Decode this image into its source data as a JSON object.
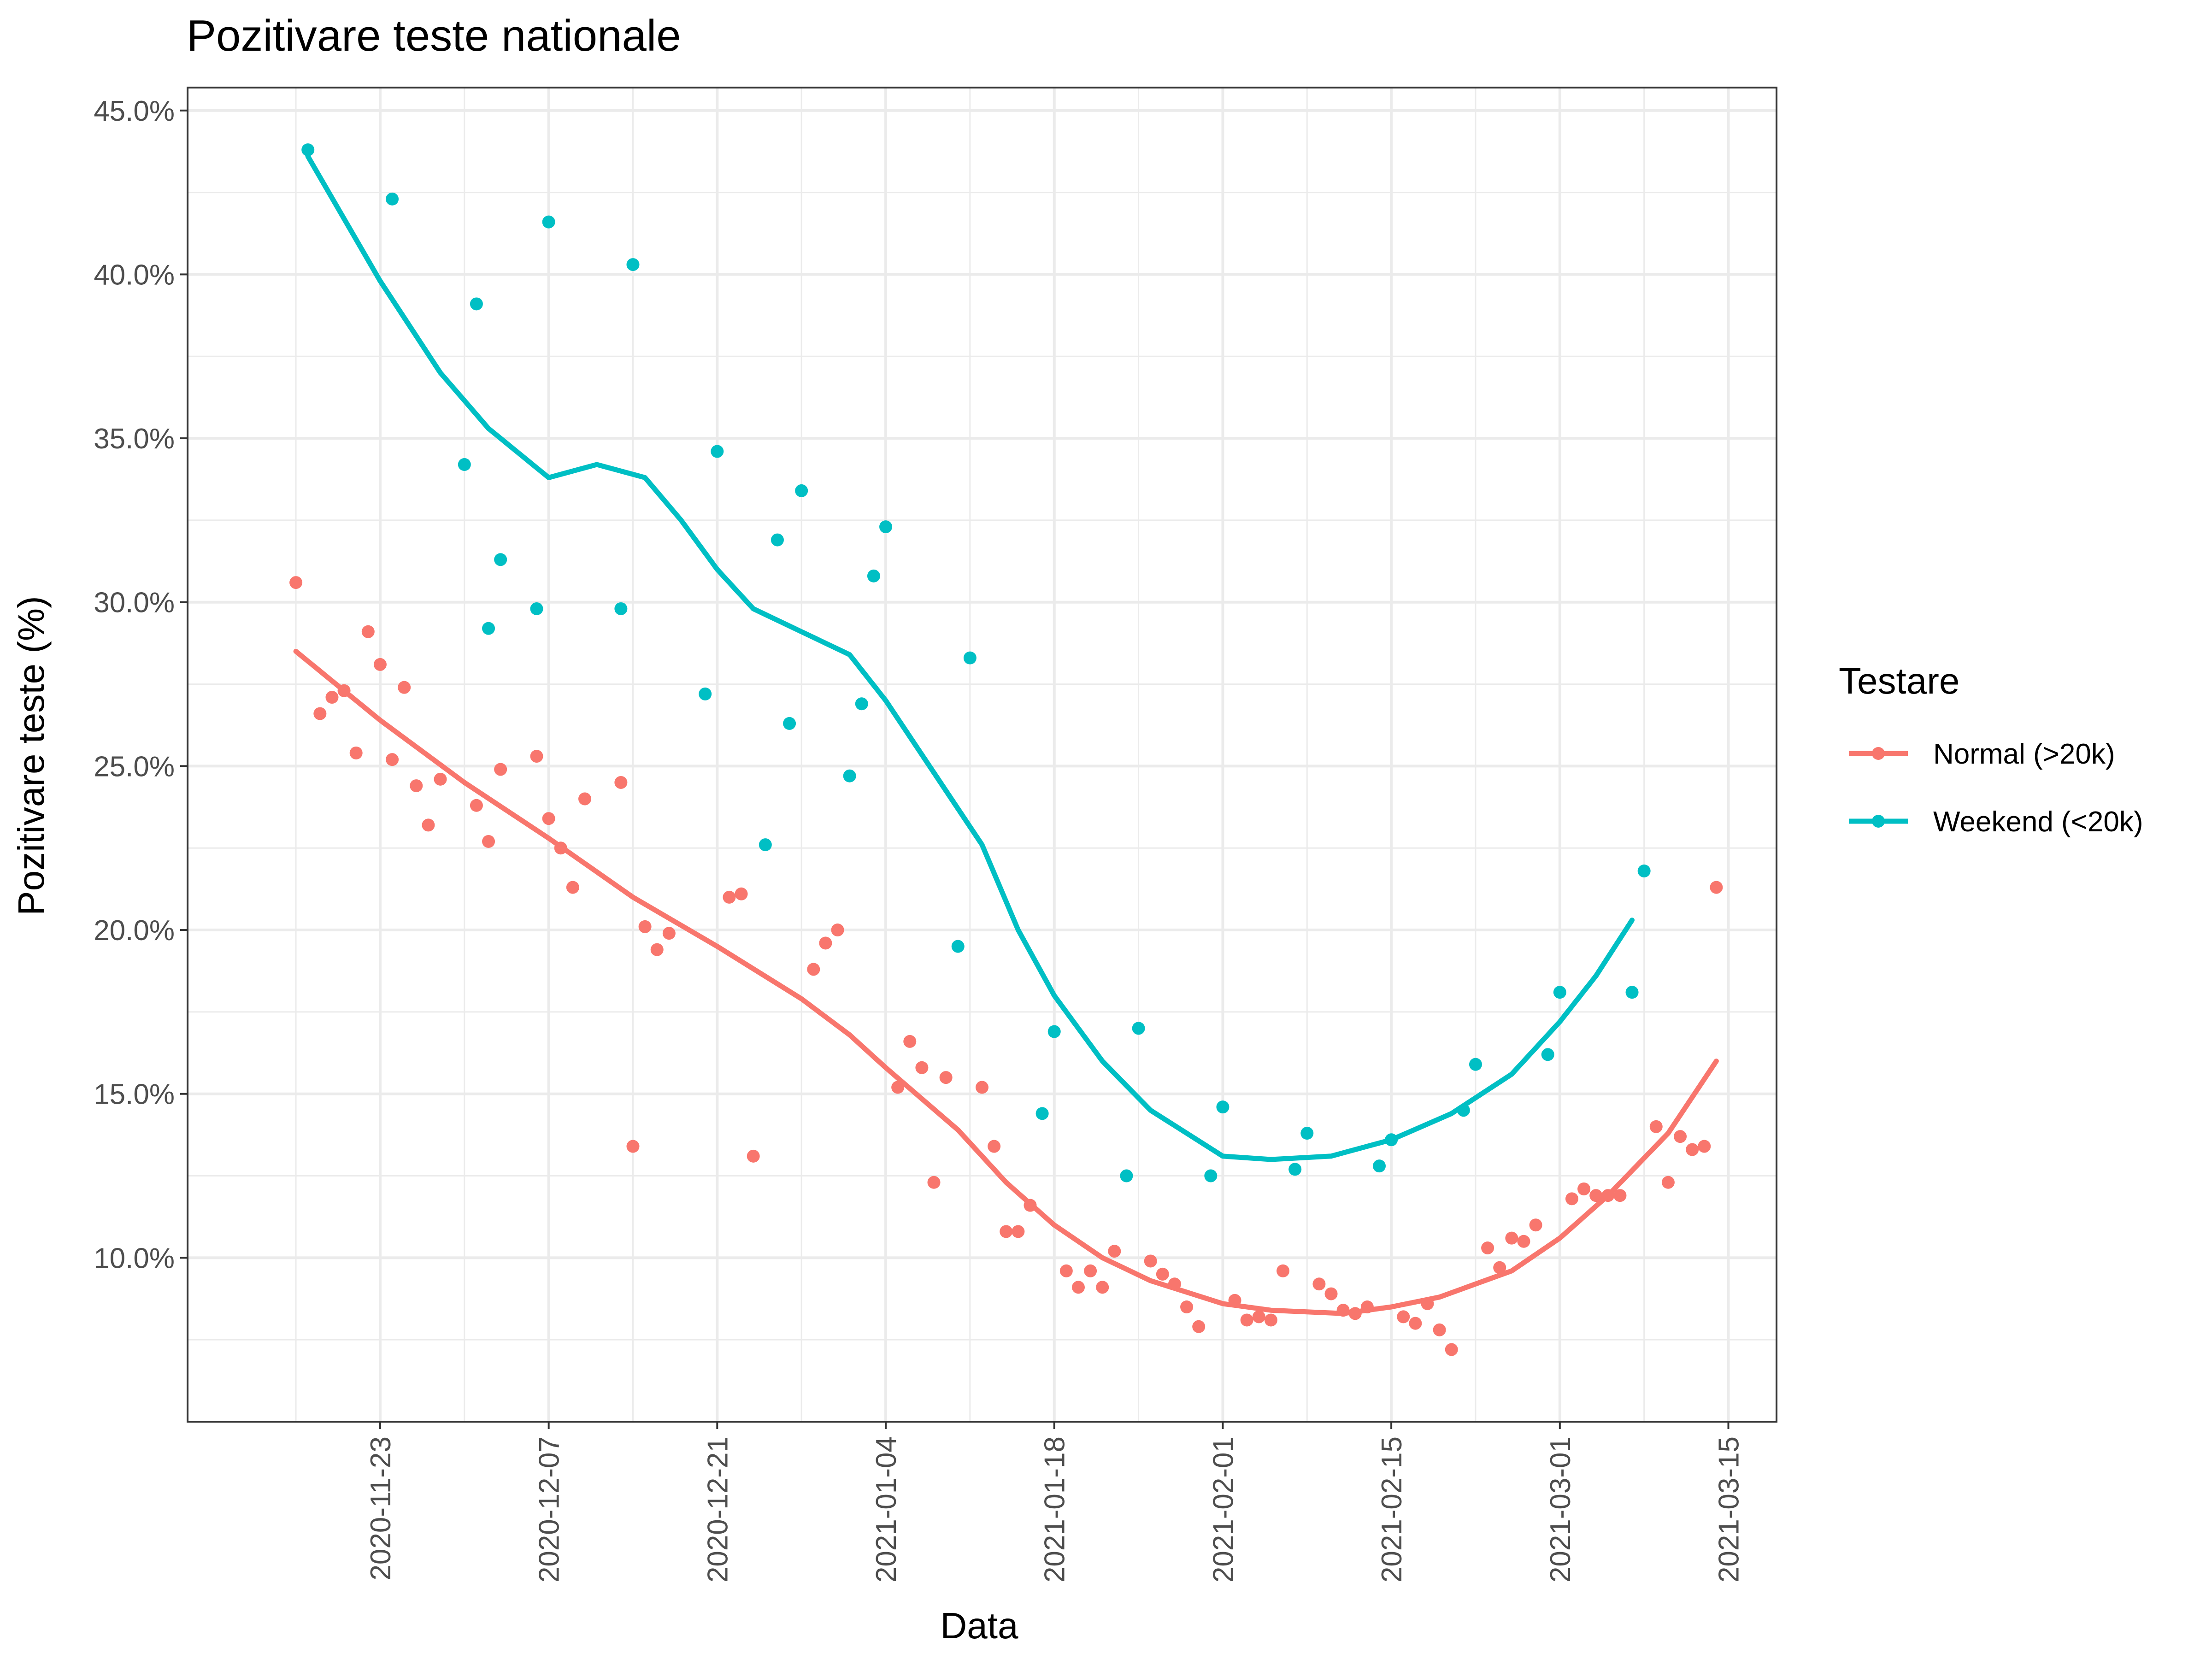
{
  "chart_data": {
    "type": "scatter",
    "title": "Pozitivare teste nationale",
    "xlabel": "Data",
    "ylabel": "Pozitivare teste (%)",
    "x_ticks": [
      "2020-11-23",
      "2020-12-07",
      "2020-12-21",
      "2021-01-04",
      "2021-01-18",
      "2021-02-01",
      "2021-02-15",
      "2021-03-01",
      "2021-03-15"
    ],
    "y_ticks": [
      "10.0%",
      "15.0%",
      "20.0%",
      "25.0%",
      "30.0%",
      "35.0%",
      "40.0%",
      "45.0%"
    ],
    "xlim": [
      "2020-11-07",
      "2021-03-19"
    ],
    "ylim": [
      5.0,
      45.7
    ],
    "grid": true,
    "legend": {
      "title": "Testare",
      "position": "right"
    },
    "series": [
      {
        "name": "Normal (>20k)",
        "color": "#F8766D",
        "points": [
          [
            "2020-11-16",
            30.6
          ],
          [
            "2020-11-18",
            26.6
          ],
          [
            "2020-11-19",
            27.1
          ],
          [
            "2020-11-20",
            27.3
          ],
          [
            "2020-11-21",
            25.4
          ],
          [
            "2020-11-22",
            29.1
          ],
          [
            "2020-11-23",
            28.1
          ],
          [
            "2020-11-24",
            25.2
          ],
          [
            "2020-11-25",
            27.4
          ],
          [
            "2020-11-26",
            24.4
          ],
          [
            "2020-11-27",
            23.2
          ],
          [
            "2020-11-28",
            24.6
          ],
          [
            "2020-12-01",
            23.8
          ],
          [
            "2020-12-02",
            22.7
          ],
          [
            "2020-12-03",
            24.9
          ],
          [
            "2020-12-06",
            25.3
          ],
          [
            "2020-12-07",
            23.4
          ],
          [
            "2020-12-08",
            22.5
          ],
          [
            "2020-12-09",
            21.3
          ],
          [
            "2020-12-10",
            24.0
          ],
          [
            "2020-12-13",
            24.5
          ],
          [
            "2020-12-14",
            13.4
          ],
          [
            "2020-12-15",
            20.1
          ],
          [
            "2020-12-16",
            19.4
          ],
          [
            "2020-12-17",
            19.9
          ],
          [
            "2020-12-22",
            21.0
          ],
          [
            "2020-12-23",
            21.1
          ],
          [
            "2020-12-24",
            13.1
          ],
          [
            "2020-12-29",
            18.8
          ],
          [
            "2020-12-30",
            19.6
          ],
          [
            "2020-12-31",
            20.0
          ],
          [
            "2021-01-05",
            15.2
          ],
          [
            "2021-01-06",
            16.6
          ],
          [
            "2021-01-07",
            15.8
          ],
          [
            "2021-01-08",
            12.3
          ],
          [
            "2021-01-09",
            15.5
          ],
          [
            "2021-01-12",
            15.2
          ],
          [
            "2021-01-13",
            13.4
          ],
          [
            "2021-01-14",
            10.8
          ],
          [
            "2021-01-15",
            10.8
          ],
          [
            "2021-01-16",
            11.6
          ],
          [
            "2021-01-19",
            9.6
          ],
          [
            "2021-01-20",
            9.1
          ],
          [
            "2021-01-21",
            9.6
          ],
          [
            "2021-01-22",
            9.1
          ],
          [
            "2021-01-23",
            10.2
          ],
          [
            "2021-01-26",
            9.9
          ],
          [
            "2021-01-27",
            9.5
          ],
          [
            "2021-01-28",
            9.2
          ],
          [
            "2021-01-29",
            8.5
          ],
          [
            "2021-01-30",
            7.9
          ],
          [
            "2021-02-02",
            8.7
          ],
          [
            "2021-02-03",
            8.1
          ],
          [
            "2021-02-04",
            8.2
          ],
          [
            "2021-02-05",
            8.1
          ],
          [
            "2021-02-06",
            9.6
          ],
          [
            "2021-02-09",
            9.2
          ],
          [
            "2021-02-10",
            8.9
          ],
          [
            "2021-02-11",
            8.4
          ],
          [
            "2021-02-12",
            8.3
          ],
          [
            "2021-02-13",
            8.5
          ],
          [
            "2021-02-16",
            8.2
          ],
          [
            "2021-02-17",
            8.0
          ],
          [
            "2021-02-18",
            8.6
          ],
          [
            "2021-02-19",
            7.8
          ],
          [
            "2021-02-20",
            7.2
          ],
          [
            "2021-02-23",
            10.3
          ],
          [
            "2021-02-24",
            9.7
          ],
          [
            "2021-02-25",
            10.6
          ],
          [
            "2021-02-26",
            10.5
          ],
          [
            "2021-02-27",
            11.0
          ],
          [
            "2021-03-02",
            11.8
          ],
          [
            "2021-03-03",
            12.1
          ],
          [
            "2021-03-04",
            11.9
          ],
          [
            "2021-03-05",
            11.9
          ],
          [
            "2021-03-06",
            11.9
          ],
          [
            "2021-03-09",
            14.0
          ],
          [
            "2021-03-10",
            12.3
          ],
          [
            "2021-03-11",
            13.7
          ],
          [
            "2021-03-12",
            13.3
          ],
          [
            "2021-03-13",
            13.4
          ],
          [
            "2021-03-14",
            21.3
          ]
        ],
        "smooth": [
          [
            "2020-11-16",
            28.5
          ],
          [
            "2020-11-23",
            26.4
          ],
          [
            "2020-11-30",
            24.5
          ],
          [
            "2020-12-07",
            22.8
          ],
          [
            "2020-12-14",
            21.0
          ],
          [
            "2020-12-21",
            19.5
          ],
          [
            "2020-12-28",
            17.9
          ],
          [
            "2021-01-01",
            16.8
          ],
          [
            "2021-01-04",
            15.8
          ],
          [
            "2021-01-10",
            13.9
          ],
          [
            "2021-01-14",
            12.3
          ],
          [
            "2021-01-18",
            11.0
          ],
          [
            "2021-01-22",
            10.0
          ],
          [
            "2021-01-26",
            9.3
          ],
          [
            "2021-02-01",
            8.6
          ],
          [
            "2021-02-05",
            8.4
          ],
          [
            "2021-02-11",
            8.3
          ],
          [
            "2021-02-15",
            8.5
          ],
          [
            "2021-02-19",
            8.8
          ],
          [
            "2021-02-25",
            9.6
          ],
          [
            "2021-03-01",
            10.6
          ],
          [
            "2021-03-05",
            11.9
          ],
          [
            "2021-03-10",
            13.8
          ],
          [
            "2021-03-14",
            16.0
          ]
        ]
      },
      {
        "name": "Weekend (<20k)",
        "color": "#00BFC4",
        "points": [
          [
            "2020-11-17",
            43.8
          ],
          [
            "2020-11-24",
            42.3
          ],
          [
            "2020-11-30",
            34.2
          ],
          [
            "2020-12-01",
            39.1
          ],
          [
            "2020-12-02",
            29.2
          ],
          [
            "2020-12-03",
            31.3
          ],
          [
            "2020-12-06",
            29.8
          ],
          [
            "2020-12-07",
            41.6
          ],
          [
            "2020-12-13",
            29.8
          ],
          [
            "2020-12-14",
            40.3
          ],
          [
            "2020-12-20",
            27.2
          ],
          [
            "2020-12-21",
            34.6
          ],
          [
            "2020-12-25",
            22.6
          ],
          [
            "2020-12-26",
            31.9
          ],
          [
            "2020-12-27",
            26.3
          ],
          [
            "2020-12-28",
            33.4
          ],
          [
            "2021-01-01",
            24.7
          ],
          [
            "2021-01-02",
            26.9
          ],
          [
            "2021-01-03",
            30.8
          ],
          [
            "2021-01-04",
            32.3
          ],
          [
            "2021-01-10",
            19.5
          ],
          [
            "2021-01-11",
            28.3
          ],
          [
            "2021-01-17",
            14.4
          ],
          [
            "2021-01-18",
            16.9
          ],
          [
            "2021-01-24",
            12.5
          ],
          [
            "2021-01-25",
            17.0
          ],
          [
            "2021-01-31",
            12.5
          ],
          [
            "2021-02-01",
            14.6
          ],
          [
            "2021-02-07",
            12.7
          ],
          [
            "2021-02-08",
            13.8
          ],
          [
            "2021-02-14",
            12.8
          ],
          [
            "2021-02-15",
            13.6
          ],
          [
            "2021-02-21",
            14.5
          ],
          [
            "2021-02-22",
            15.9
          ],
          [
            "2021-02-28",
            16.2
          ],
          [
            "2021-03-01",
            18.1
          ],
          [
            "2021-03-07",
            18.1
          ],
          [
            "2021-03-08",
            21.8
          ]
        ],
        "smooth": [
          [
            "2020-11-17",
            43.6
          ],
          [
            "2020-11-23",
            39.8
          ],
          [
            "2020-11-28",
            37.0
          ],
          [
            "2020-12-02",
            35.3
          ],
          [
            "2020-12-07",
            33.8
          ],
          [
            "2020-12-11",
            34.2
          ],
          [
            "2020-12-15",
            33.8
          ],
          [
            "2020-12-18",
            32.5
          ],
          [
            "2020-12-21",
            31.0
          ],
          [
            "2020-12-24",
            29.8
          ],
          [
            "2020-12-28",
            29.1
          ],
          [
            "2021-01-01",
            28.4
          ],
          [
            "2021-01-04",
            27.0
          ],
          [
            "2021-01-08",
            24.8
          ],
          [
            "2021-01-12",
            22.6
          ],
          [
            "2021-01-15",
            20.0
          ],
          [
            "2021-01-18",
            18.0
          ],
          [
            "2021-01-22",
            16.0
          ],
          [
            "2021-01-26",
            14.5
          ],
          [
            "2021-02-01",
            13.1
          ],
          [
            "2021-02-05",
            13.0
          ],
          [
            "2021-02-10",
            13.1
          ],
          [
            "2021-02-15",
            13.6
          ],
          [
            "2021-02-20",
            14.4
          ],
          [
            "2021-02-25",
            15.6
          ],
          [
            "2021-03-01",
            17.2
          ],
          [
            "2021-03-04",
            18.6
          ],
          [
            "2021-03-07",
            20.3
          ]
        ]
      }
    ]
  }
}
